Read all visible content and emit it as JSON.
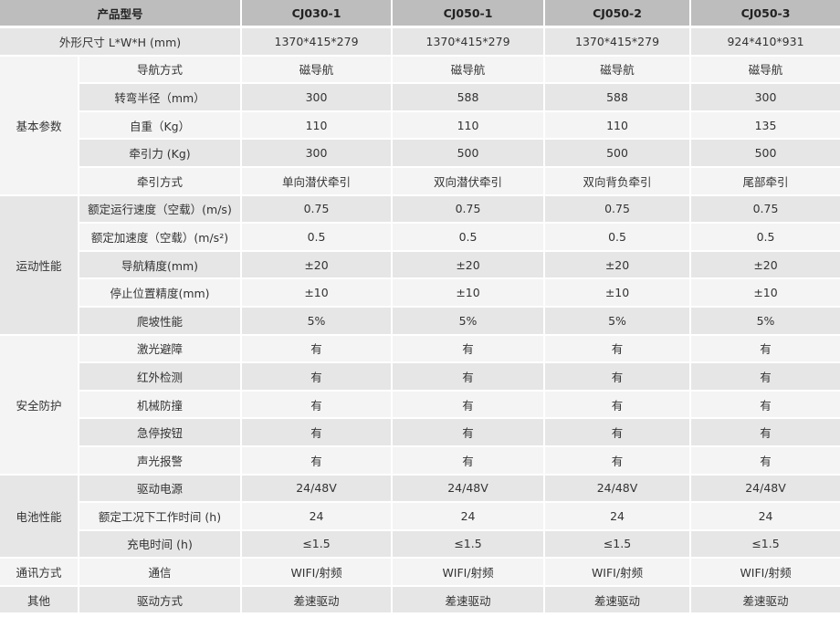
{
  "header": {
    "label": "产品型号",
    "models": [
      "CJ030-1",
      "CJ050-1",
      "CJ050-2",
      "CJ050-3"
    ]
  },
  "dimension_row": {
    "label": "外形尺寸 L*W*H (mm)",
    "values": [
      "1370*415*279",
      "1370*415*279",
      "1370*415*279",
      "924*410*931"
    ]
  },
  "groups": [
    {
      "name": "基本参数",
      "rows": [
        {
          "label": "导航方式",
          "values": [
            "磁导航",
            "磁导航",
            "磁导航",
            "磁导航"
          ]
        },
        {
          "label": "转弯半径（mm）",
          "values": [
            "300",
            "588",
            "588",
            "300"
          ]
        },
        {
          "label": "自重（Kg）",
          "values": [
            "110",
            "110",
            "110",
            "135"
          ]
        },
        {
          "label": "牵引力 (Kg)",
          "values": [
            "300",
            "500",
            "500",
            "500"
          ]
        },
        {
          "label": "牵引方式",
          "values": [
            "单向潜伏牵引",
            "双向潜伏牵引",
            "双向背负牵引",
            "尾部牵引"
          ]
        }
      ]
    },
    {
      "name": "运动性能",
      "rows": [
        {
          "label": "额定运行速度（空载）(m/s)",
          "values": [
            "0.75",
            "0.75",
            "0.75",
            "0.75"
          ]
        },
        {
          "label": "额定加速度（空载）(m/s²)",
          "values": [
            "0.5",
            "0.5",
            "0.5",
            "0.5"
          ]
        },
        {
          "label": "导航精度(mm)",
          "values": [
            "±20",
            "±20",
            "±20",
            "±20"
          ]
        },
        {
          "label": "停止位置精度(mm)",
          "values": [
            "±10",
            "±10",
            "±10",
            "±10"
          ]
        },
        {
          "label": "爬坡性能",
          "values": [
            "5%",
            "5%",
            "5%",
            "5%"
          ]
        }
      ]
    },
    {
      "name": "安全防护",
      "rows": [
        {
          "label": "激光避障",
          "values": [
            "有",
            "有",
            "有",
            "有"
          ]
        },
        {
          "label": "红外检测",
          "values": [
            "有",
            "有",
            "有",
            "有"
          ]
        },
        {
          "label": "机械防撞",
          "values": [
            "有",
            "有",
            "有",
            "有"
          ]
        },
        {
          "label": "急停按钮",
          "values": [
            "有",
            "有",
            "有",
            "有"
          ]
        },
        {
          "label": "声光报警",
          "values": [
            "有",
            "有",
            "有",
            "有"
          ]
        }
      ]
    },
    {
      "name": "电池性能",
      "rows": [
        {
          "label": "驱动电源",
          "values": [
            "24/48V",
            "24/48V",
            "24/48V",
            "24/48V"
          ]
        },
        {
          "label": "额定工况下工作时间 (h)",
          "values": [
            "24",
            "24",
            "24",
            "24"
          ]
        },
        {
          "label": "充电时间 (h)",
          "values": [
            "≤1.5",
            "≤1.5",
            "≤1.5",
            "≤1.5"
          ]
        }
      ]
    },
    {
      "name": "通讯方式",
      "rows": [
        {
          "label": "通信",
          "values": [
            "WIFI/射频",
            "WIFI/射频",
            "WIFI/射频",
            "WIFI/射频"
          ]
        }
      ]
    },
    {
      "name": "其他",
      "rows": [
        {
          "label": "驱动方式",
          "values": [
            "差速驱动",
            "差速驱动",
            "差速驱动",
            "差速驱动"
          ]
        }
      ]
    }
  ],
  "colors": {
    "header_bg": "#bdbdbd",
    "row_dark": "#e6e6e6",
    "row_light": "#f4f4f4"
  }
}
